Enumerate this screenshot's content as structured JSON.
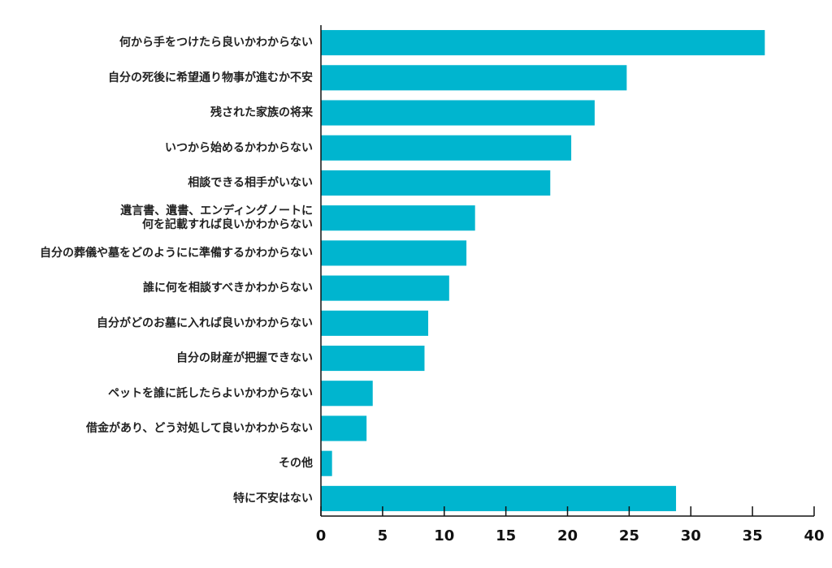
{
  "chart_data": {
    "type": "bar",
    "orientation": "horizontal",
    "title": "",
    "xlabel": "",
    "ylabel": "",
    "bar_color": "#00b5cf",
    "axis_color": "#111111",
    "xlim": [
      0,
      40
    ],
    "xticks": [
      0,
      5,
      10,
      15,
      20,
      25,
      30,
      35,
      40
    ],
    "grid": false,
    "legend": "none",
    "categories": [
      [
        "何から手をつけたら良いかわからない"
      ],
      [
        "自分の死後に希望通り物事が進むか不安"
      ],
      [
        "残された家族の将来"
      ],
      [
        "いつから始めるかわからない"
      ],
      [
        "相談できる相手がいない"
      ],
      [
        "遺言書、遺書、エンディングノートに",
        "何を記載すれば良いかわからない"
      ],
      [
        "自分の葬儀や墓をどのようにに準備するかわからない"
      ],
      [
        "誰に何を相談すべきかわからない"
      ],
      [
        "自分がどのお墓に入れば良いかわからない"
      ],
      [
        "自分の財産が把握できない"
      ],
      [
        "ペットを誰に託したらよいかわからない"
      ],
      [
        "借金があり、どう対処して良いかわからない"
      ],
      [
        "その他"
      ],
      [
        "特に不安はない"
      ]
    ],
    "values": [
      36.0,
      24.8,
      22.2,
      20.3,
      18.6,
      12.5,
      11.8,
      10.4,
      8.7,
      8.4,
      4.2,
      3.7,
      0.9,
      28.8
    ]
  }
}
